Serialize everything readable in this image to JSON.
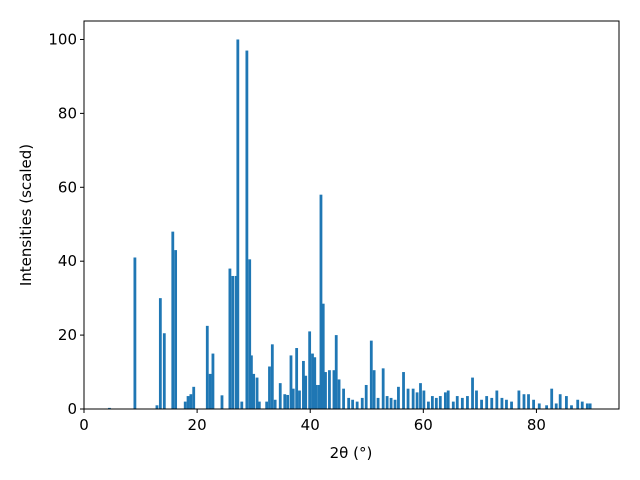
{
  "chart_data": {
    "type": "bar",
    "xlabel": "2θ (°)",
    "ylabel": "Intensities (scaled)",
    "color": "#1f77b4",
    "x": [
      4.5,
      9.0,
      12.9,
      13.5,
      14.2,
      15.7,
      16.2,
      17.9,
      18.4,
      18.9,
      19.4,
      21.8,
      22.3,
      22.8,
      24.4,
      25.8,
      26.3,
      26.9,
      27.2,
      27.9,
      28.8,
      29.3,
      29.6,
      30.0,
      30.6,
      31.0,
      32.3,
      32.8,
      33.3,
      33.8,
      34.7,
      35.5,
      36.0,
      36.6,
      37.0,
      37.6,
      38.1,
      38.8,
      39.2,
      39.9,
      40.4,
      40.8,
      41.1,
      41.6,
      41.9,
      42.3,
      42.7,
      43.4,
      44.2,
      44.6,
      45.1,
      45.9,
      46.8,
      47.5,
      48.3,
      49.2,
      49.9,
      50.8,
      51.3,
      52.0,
      52.9,
      53.6,
      54.3,
      55.0,
      55.6,
      56.5,
      57.3,
      58.2,
      58.9,
      59.5,
      60.1,
      60.9,
      61.6,
      62.3,
      63.0,
      63.9,
      64.4,
      65.3,
      66.0,
      66.9,
      67.8,
      68.7,
      69.4,
      70.3,
      71.2,
      72.1,
      73.0,
      73.9,
      74.7,
      75.6,
      76.9,
      77.8,
      78.6,
      79.5,
      80.5,
      81.8,
      82.7,
      83.5,
      84.2,
      85.3,
      86.2,
      87.3,
      88.1,
      89.0,
      89.5
    ],
    "values": [
      0.3,
      41,
      1,
      30,
      20.5,
      48,
      43,
      2,
      3.5,
      4,
      6,
      22.5,
      9.5,
      15,
      3.7,
      38,
      36,
      36,
      100,
      2,
      97,
      40.5,
      14.5,
      9.5,
      8.5,
      2,
      2,
      11.5,
      17.5,
      2.5,
      7,
      4,
      3.8,
      14.5,
      5.5,
      16.5,
      5,
      13,
      9,
      21,
      15,
      14,
      6.5,
      6.5,
      58,
      28.5,
      10,
      10.5,
      10.5,
      20,
      8,
      5.5,
      3,
      2.5,
      2,
      3,
      6.5,
      18.5,
      10.5,
      3,
      11,
      3.5,
      3,
      2.5,
      6,
      10,
      5.5,
      5.5,
      4.5,
      7,
      5,
      2,
      3.5,
      3,
      3.5,
      4.5,
      5,
      2,
      3.5,
      3,
      3.5,
      8.5,
      5,
      2.5,
      3.5,
      3,
      5,
      3,
      2.5,
      2,
      5,
      4,
      4,
      2.5,
      1.5,
      1,
      5.5,
      1.5,
      4,
      3.5,
      1,
      2.5,
      2,
      1.5,
      1.5
    ],
    "xlim": [
      0,
      94.6
    ],
    "ylim": [
      0,
      105
    ],
    "xticks": [
      0,
      20,
      40,
      60,
      80
    ],
    "yticks": [
      0,
      20,
      40,
      60,
      80,
      100
    ]
  }
}
